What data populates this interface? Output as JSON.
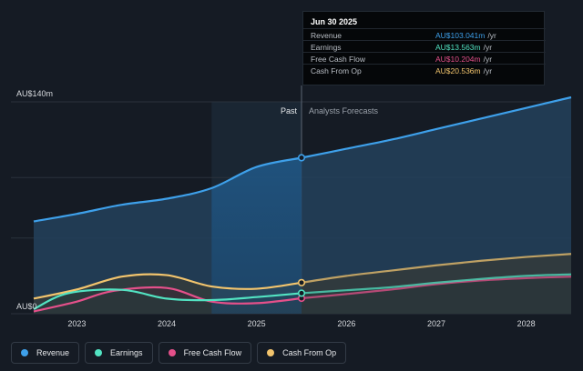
{
  "chart_data": {
    "type": "area",
    "y_top_label": "AU$140m",
    "y_zero_label": "AU$0",
    "ylim": [
      0,
      140
    ],
    "x_ticks": [
      "2023",
      "2024",
      "2025",
      "2026",
      "2027",
      "2028"
    ],
    "x_tick_values": [
      2023,
      2024,
      2025,
      2026,
      2027,
      2028
    ],
    "xlim": [
      2022.52,
      2028.5
    ],
    "divider_x": 2025.5,
    "highlight_start_x": 2024.5,
    "past_label": "Past",
    "forecast_label": "Analysts Forecasts",
    "series": [
      {
        "name": "Revenue",
        "color": "#3ea0ea",
        "points": [
          [
            2022.52,
            61
          ],
          [
            2023.0,
            66
          ],
          [
            2023.5,
            72
          ],
          [
            2024.0,
            76
          ],
          [
            2024.5,
            83
          ],
          [
            2025.0,
            97
          ],
          [
            2025.5,
            103.041
          ],
          [
            2026.0,
            109
          ],
          [
            2026.5,
            115
          ],
          [
            2027.0,
            122
          ],
          [
            2027.5,
            129
          ],
          [
            2028.0,
            136
          ],
          [
            2028.5,
            143
          ]
        ]
      },
      {
        "name": "Earnings",
        "color": "#52e3c2",
        "points": [
          [
            2022.52,
            3
          ],
          [
            2022.9,
            13.5
          ],
          [
            2023.5,
            15.8
          ],
          [
            2024.0,
            10
          ],
          [
            2024.5,
            9
          ],
          [
            2025.0,
            11
          ],
          [
            2025.5,
            13.563
          ],
          [
            2026.0,
            15.5
          ],
          [
            2026.5,
            17.5
          ],
          [
            2027.0,
            20.5
          ],
          [
            2027.5,
            23
          ],
          [
            2028.0,
            25
          ],
          [
            2028.5,
            26
          ]
        ]
      },
      {
        "name": "Free Cash Flow",
        "color": "#e4508a",
        "points": [
          [
            2022.52,
            1.5
          ],
          [
            2023.0,
            8
          ],
          [
            2023.4,
            15
          ],
          [
            2024.0,
            17
          ],
          [
            2024.5,
            8
          ],
          [
            2025.0,
            7
          ],
          [
            2025.5,
            10.204
          ],
          [
            2026.0,
            13
          ],
          [
            2026.5,
            16
          ],
          [
            2027.0,
            19.5
          ],
          [
            2027.5,
            22
          ],
          [
            2028.0,
            23.5
          ],
          [
            2028.5,
            24.5
          ]
        ]
      },
      {
        "name": "Cash From Op",
        "color": "#f2c46d",
        "points": [
          [
            2022.52,
            10
          ],
          [
            2023.0,
            16
          ],
          [
            2023.5,
            24.5
          ],
          [
            2024.0,
            25.5
          ],
          [
            2024.5,
            18
          ],
          [
            2025.0,
            16.5
          ],
          [
            2025.5,
            20.536
          ],
          [
            2026.0,
            25
          ],
          [
            2026.5,
            28.5
          ],
          [
            2027.0,
            32
          ],
          [
            2027.5,
            35
          ],
          [
            2028.0,
            37.5
          ],
          [
            2028.5,
            39.5
          ]
        ]
      }
    ]
  },
  "tooltip": {
    "date": "Jun 30 2025",
    "unit": "/yr",
    "rows": [
      {
        "label": "Revenue",
        "value": "AU$103.041m",
        "color": "#3ea0ea"
      },
      {
        "label": "Earnings",
        "value": "AU$13.563m",
        "color": "#52e3c2"
      },
      {
        "label": "Free Cash Flow",
        "value": "AU$10.204m",
        "color": "#e4508a"
      },
      {
        "label": "Cash From Op",
        "value": "AU$20.536m",
        "color": "#f2c46d"
      }
    ]
  },
  "legend": [
    {
      "label": "Revenue",
      "color": "#3ea0ea"
    },
    {
      "label": "Earnings",
      "color": "#52e3c2"
    },
    {
      "label": "Free Cash Flow",
      "color": "#e4508a"
    },
    {
      "label": "Cash From Op",
      "color": "#f2c46d"
    }
  ]
}
